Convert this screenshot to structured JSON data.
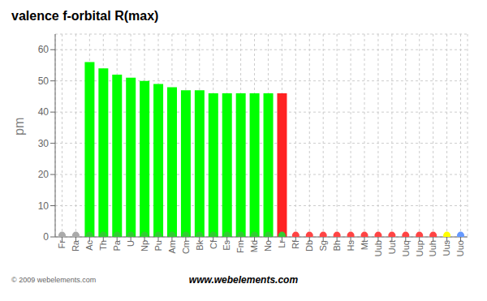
{
  "chart_data": {
    "type": "bar",
    "title": "valence f-orbital R(max)",
    "y_label": "pm",
    "annotations": [
      "www.webelements.com",
      "© 2009 webelements.com"
    ],
    "categories": [
      "Fr",
      "Ra",
      "Ac",
      "Th",
      "Pa",
      "U",
      "Np",
      "Pu",
      "Am",
      "Cm",
      "Bk",
      "Cf",
      "Es",
      "Fm",
      "Md",
      "No",
      "Lr",
      "Rf",
      "Db",
      "Sg",
      "Bh",
      "Hs",
      "Mt",
      "Uub",
      "Uut",
      "Uuq",
      "Uup",
      "Uuh",
      "Uus",
      "Uuo"
    ],
    "series": [
      {
        "type": "bar",
        "values": [
          0,
          0,
          56,
          54,
          52,
          51,
          50,
          49,
          48,
          47,
          47,
          46,
          46,
          46,
          46,
          46,
          46,
          0,
          0,
          0,
          0,
          0,
          0,
          0,
          0,
          0,
          0,
          0,
          0,
          0
        ],
        "colors": [
          null,
          null,
          "#00ff00",
          "#00ff00",
          "#00ff00",
          "#00ff00",
          "#00ff00",
          "#00ff00",
          "#00ff00",
          "#00ff00",
          "#00ff00",
          "#00ff00",
          "#00ff00",
          "#00ff00",
          "#00ff00",
          "#00ff00",
          "#ff2222",
          null,
          null,
          null,
          null,
          null,
          null,
          null,
          null,
          null,
          null,
          null,
          null,
          null
        ]
      },
      {
        "type": "scatter",
        "values": [
          0.5,
          0.5,
          0.5,
          0.5,
          0.5,
          0.5,
          0.5,
          0.5,
          0.5,
          0.5,
          0.5,
          0.5,
          0.5,
          0.5,
          0.5,
          0.5,
          0.5,
          0.5,
          0.5,
          0.5,
          0.5,
          0.5,
          0.5,
          0.5,
          0.5,
          0.5,
          0.5,
          0.5,
          0.5,
          0.5
        ],
        "colors": [
          "#aaaaaa",
          "#aaaaaa",
          "#33cc33",
          "#33cc33",
          "#33cc33",
          "#33cc33",
          "#33cc33",
          "#33cc33",
          "#33cc33",
          "#33cc33",
          "#33cc33",
          "#33cc33",
          "#33cc33",
          "#33cc33",
          "#33cc33",
          "#33cc33",
          "#33cc33",
          "#ff4444",
          "#ff4444",
          "#ff4444",
          "#ff4444",
          "#ff4444",
          "#ff4444",
          "#ff4444",
          "#ff4444",
          "#ff4444",
          "#ff4444",
          "#ff4444",
          "#ffff00",
          "#6699ff"
        ]
      }
    ],
    "ylim": [
      0,
      65
    ],
    "yticks": [
      0,
      10,
      20,
      30,
      40,
      50,
      60
    ],
    "grid": true
  }
}
